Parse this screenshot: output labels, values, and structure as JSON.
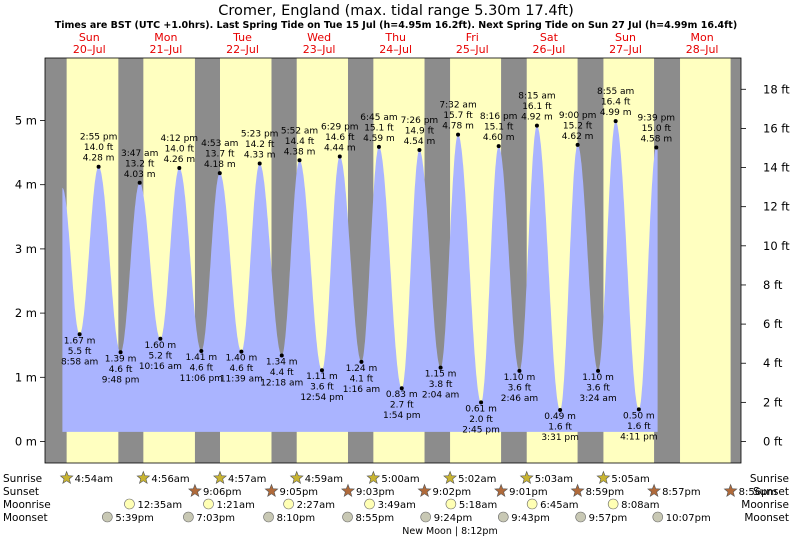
{
  "chart_data": {
    "type": "area",
    "title": "Cromer, England (max. tidal range 5.30m 17.4ft)",
    "subtitle": "Times are BST (UTC +1.0hrs). Last Spring Tide on Tue 15 Jul (h=4.95m 16.2ft). Next Spring Tide on Sun 27 Jul (h=4.99m 16.4ft)",
    "days": [
      {
        "dow": "Sun",
        "date": "20–Jul"
      },
      {
        "dow": "Mon",
        "date": "21–Jul"
      },
      {
        "dow": "Tue",
        "date": "22–Jul"
      },
      {
        "dow": "Wed",
        "date": "23–Jul"
      },
      {
        "dow": "Thu",
        "date": "24–Jul"
      },
      {
        "dow": "Fri",
        "date": "25–Jul"
      },
      {
        "dow": "Sat",
        "date": "26–Jul"
      },
      {
        "dow": "Sun",
        "date": "27–Jul"
      },
      {
        "dow": "Mon",
        "date": "28–Jul"
      }
    ],
    "y_left": {
      "unit": "m",
      "range": [
        -0.2,
        6.1
      ],
      "ticks": [
        0,
        1,
        2,
        3,
        4,
        5
      ],
      "labels": [
        "0 m",
        "1 m",
        "2 m",
        "3 m",
        "4 m",
        "5 m"
      ]
    },
    "y_right": {
      "unit": "ft",
      "ticks": [
        0,
        2,
        4,
        6,
        8,
        10,
        12,
        14,
        16,
        18
      ],
      "labels": [
        "0 ft",
        "2 ft",
        "4 ft",
        "6 ft",
        "8 ft",
        "10 ft",
        "12 ft",
        "14 ft",
        "16 ft",
        "18 ft"
      ]
    },
    "series": [
      {
        "tides": [
          {
            "type": "high",
            "day": 0,
            "time": "2:55 pm",
            "h": 4.28,
            "m": "4.28 m",
            "ft": "14.0 ft"
          },
          {
            "type": "low",
            "day": 0,
            "time": "8:58 am",
            "h": 1.67,
            "m": "1.67 m",
            "ft": "5.5 ft"
          },
          {
            "type": "low",
            "day": 0,
            "time": "9:48 pm",
            "h": 1.39,
            "m": "1.39 m",
            "ft": "4.6 ft"
          },
          {
            "type": "high",
            "day": 1,
            "time": "3:47 am",
            "h": 4.03,
            "m": "4.03 m",
            "ft": "13.2 ft"
          },
          {
            "type": "low",
            "day": 1,
            "time": "10:16 am",
            "h": 1.6,
            "m": "1.60 m",
            "ft": "5.2 ft"
          },
          {
            "type": "high",
            "day": 1,
            "time": "4:12 pm",
            "h": 4.26,
            "m": "4.26 m",
            "ft": "14.0 ft"
          },
          {
            "type": "low",
            "day": 1,
            "time": "11:06 pm",
            "h": 1.41,
            "m": "1.41 m",
            "ft": "4.6 ft"
          },
          {
            "type": "high",
            "day": 2,
            "time": "4:53 am",
            "h": 4.18,
            "m": "4.18 m",
            "ft": "13.7 ft"
          },
          {
            "type": "low",
            "day": 2,
            "time": "11:39 am",
            "h": 1.4,
            "m": "1.40 m",
            "ft": "4.6 ft"
          },
          {
            "type": "high",
            "day": 2,
            "time": "5:23 pm",
            "h": 4.33,
            "m": "4.33 m",
            "ft": "14.2 ft"
          },
          {
            "type": "high",
            "day": 3,
            "time": "5:52 am",
            "h": 4.38,
            "m": "4.38 m",
            "ft": "14.4 ft"
          },
          {
            "type": "low",
            "day": 3,
            "time": "12:18 am",
            "h": 1.34,
            "m": "1.34 m",
            "ft": "4.4 ft"
          },
          {
            "type": "low",
            "day": 3,
            "time": "12:54 pm",
            "h": 1.11,
            "m": "1.11 m",
            "ft": "3.6 ft"
          },
          {
            "type": "high",
            "day": 3,
            "time": "6:29 pm",
            "h": 4.44,
            "m": "4.44 m",
            "ft": "14.6 ft"
          },
          {
            "type": "low",
            "day": 4,
            "time": "1:16 am",
            "h": 1.24,
            "m": "1.24 m",
            "ft": "4.1 ft"
          },
          {
            "type": "high",
            "day": 4,
            "time": "6:45 am",
            "h": 4.59,
            "m": "4.59 m",
            "ft": "15.1 ft"
          },
          {
            "type": "low",
            "day": 4,
            "time": "1:54 pm",
            "h": 0.83,
            "m": "0.83 m",
            "ft": "2.7 ft"
          },
          {
            "type": "high",
            "day": 4,
            "time": "7:26 pm",
            "h": 4.54,
            "m": "4.54 m",
            "ft": "14.9 ft"
          },
          {
            "type": "low",
            "day": 5,
            "time": "2:04 am",
            "h": 1.15,
            "m": "1.15 m",
            "ft": "3.8 ft"
          },
          {
            "type": "high",
            "day": 5,
            "time": "7:32 am",
            "h": 4.78,
            "m": "4.78 m",
            "ft": "15.7 ft"
          },
          {
            "type": "low",
            "day": 5,
            "time": "2:45 pm",
            "h": 0.61,
            "m": "0.61 m",
            "ft": "2.0 ft"
          },
          {
            "type": "high",
            "day": 5,
            "time": "8:16 pm",
            "h": 4.6,
            "m": "4.60 m",
            "ft": "15.1 ft"
          },
          {
            "type": "low",
            "day": 6,
            "time": "2:46 am",
            "h": 1.1,
            "m": "1.10 m",
            "ft": "3.6 ft"
          },
          {
            "type": "high",
            "day": 6,
            "time": "8:15 am",
            "h": 4.92,
            "m": "4.92 m",
            "ft": "16.1 ft"
          },
          {
            "type": "low",
            "day": 6,
            "time": "3:31 pm",
            "h": 0.49,
            "m": "0.49 m",
            "ft": "1.6 ft"
          },
          {
            "type": "high",
            "day": 6,
            "time": "9:00 pm",
            "h": 4.62,
            "m": "4.62 m",
            "ft": "15.2 ft"
          },
          {
            "type": "low",
            "day": 7,
            "time": "3:24 am",
            "h": 1.1,
            "m": "1.10 m",
            "ft": "3.6 ft"
          },
          {
            "type": "high",
            "day": 7,
            "time": "8:55 am",
            "h": 4.99,
            "m": "4.99 m",
            "ft": "16.4 ft"
          },
          {
            "type": "low",
            "day": 7,
            "time": "4:11 pm",
            "h": 0.5,
            "m": "0.50 m",
            "ft": "1.6 ft"
          },
          {
            "type": "high",
            "day": 7,
            "time": "9:39 pm",
            "h": 4.58,
            "m": "4.58 m",
            "ft": "15.0 ft"
          }
        ]
      }
    ],
    "sun_moon_labels": {
      "sunrise": "Sunrise",
      "sunset": "Sunset",
      "moonrise": "Moonrise",
      "moonset": "Moonset"
    },
    "sunrise": [
      "4:54am",
      "4:56am",
      "4:57am",
      "4:59am",
      "5:00am",
      "5:02am",
      "5:03am",
      "5:05am",
      ""
    ],
    "sunset": [
      "",
      "9:06pm",
      "9:05pm",
      "9:03pm",
      "9:02pm",
      "9:01pm",
      "8:59pm",
      "8:57pm",
      "8:56pm"
    ],
    "moonrise": [
      "",
      "12:35am",
      "1:21am",
      "2:27am",
      "3:49am",
      "5:18am",
      "6:45am",
      "8:08am",
      ""
    ],
    "moonset": [
      "5:39pm",
      "7:03pm",
      "8:10pm",
      "8:55pm",
      "9:24pm",
      "9:43pm",
      "9:57pm",
      "10:07pm",
      ""
    ],
    "moon_phase_note": "New Moon | 8:12pm",
    "colors": {
      "night": "#8c8c8c",
      "day": "#ffffc0",
      "tide_fill": "#aab4ff",
      "day_label": "#e60000",
      "sun_star": "#c8b432",
      "sunset_star": "#b06a3a",
      "moon": "#ffffb4",
      "moonset": "#c8c8b4"
    }
  }
}
